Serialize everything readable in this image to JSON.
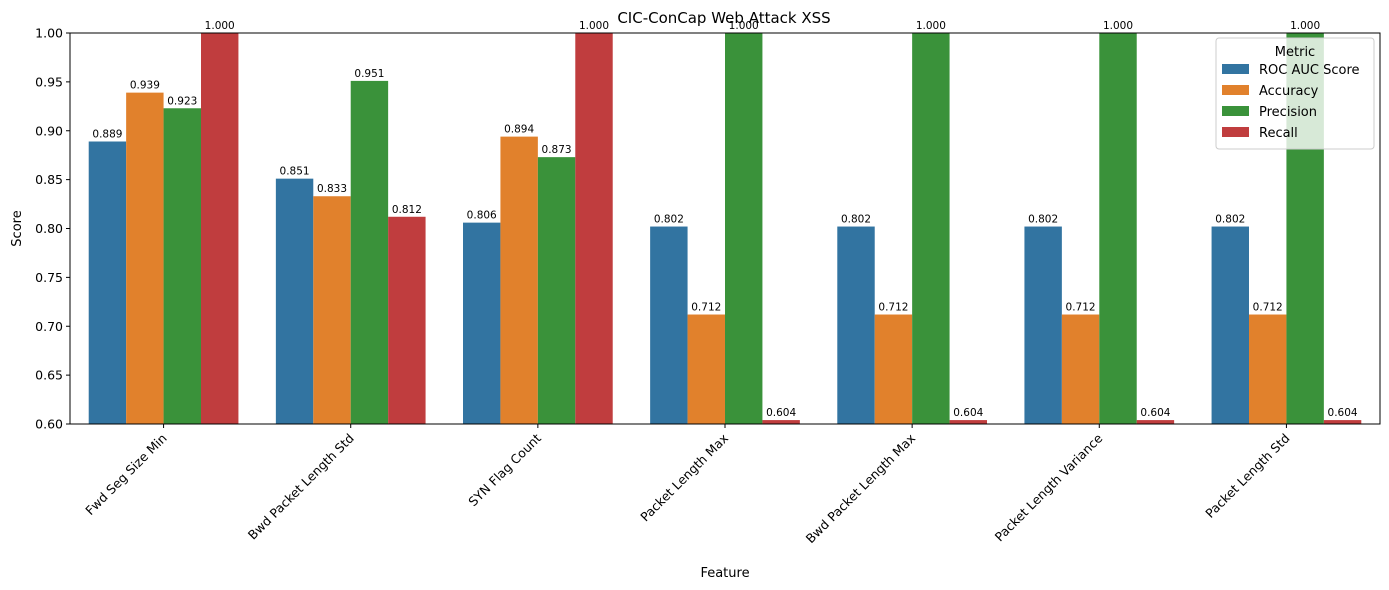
{
  "chart_data": {
    "type": "bar",
    "title": "CIC-ConCap Web Attack XSS",
    "xlabel": "Feature",
    "ylabel": "Score",
    "ylim": [
      0.6,
      1.0
    ],
    "yticks": [
      "0.60",
      "0.65",
      "0.70",
      "0.75",
      "0.80",
      "0.85",
      "0.90",
      "0.95",
      "1.00"
    ],
    "categories": [
      "Fwd Seg Size Min",
      "Bwd Packet Length Std",
      "SYN Flag Count",
      "Packet Length Max",
      "Bwd Packet Length Max",
      "Packet Length Variance",
      "Packet Length Std"
    ],
    "legend": {
      "title": "Metric",
      "placement": "upper right"
    },
    "series": [
      {
        "name": "ROC AUC Score",
        "color": "#3274a1",
        "values": [
          0.889,
          0.851,
          0.806,
          0.802,
          0.802,
          0.802,
          0.802
        ],
        "labels": [
          "0.889",
          "0.851",
          "0.806",
          "0.802",
          "0.802",
          "0.802",
          "0.802"
        ]
      },
      {
        "name": "Accuracy",
        "color": "#e1812c",
        "values": [
          0.939,
          0.833,
          0.894,
          0.712,
          0.712,
          0.712,
          0.712
        ],
        "labels": [
          "0.939",
          "0.833",
          "0.894",
          "0.712",
          "0.712",
          "0.712",
          "0.712"
        ]
      },
      {
        "name": "Precision",
        "color": "#3a923a",
        "values": [
          0.923,
          0.951,
          0.873,
          1.0,
          1.0,
          1.0,
          1.0
        ],
        "labels": [
          "0.923",
          "0.951",
          "0.873",
          "1.000",
          "1.000",
          "1.000",
          "1.000"
        ]
      },
      {
        "name": "Recall",
        "color": "#c03d3e",
        "values": [
          1.0,
          0.812,
          1.0,
          0.604,
          0.604,
          0.604,
          0.604
        ],
        "labels": [
          "1.000",
          "0.812",
          "1.000",
          "0.604",
          "0.604",
          "0.604",
          "0.604"
        ]
      }
    ]
  }
}
